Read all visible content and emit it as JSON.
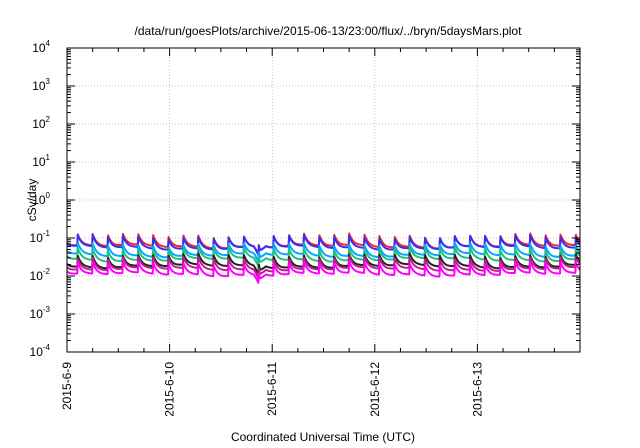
{
  "chart_data": {
    "type": "line",
    "title": "/data/run/goesPlots/archive/2015-06-13/23:00/flux/../bryn/5daysMars.plot",
    "xlabel": "Coordinated Universal Time (UTC)",
    "ylabel": "cSv/day",
    "yscale": "log",
    "ylim": [
      0.0001,
      10000
    ],
    "xlim": [
      "2015-06-09",
      "2015-06-14"
    ],
    "grid": true,
    "x_ticks": [
      "2015-6-9",
      "2015-6-10",
      "2015-6-11",
      "2015-6-12",
      "2015-6-13"
    ],
    "y_ticks": [
      {
        "base": "10",
        "exp": "-4"
      },
      {
        "base": "10",
        "exp": "-3"
      },
      {
        "base": "10",
        "exp": "-2"
      },
      {
        "base": "10",
        "exp": "-1"
      },
      {
        "base": "10",
        "exp": "0"
      },
      {
        "base": "10",
        "exp": "1"
      },
      {
        "base": "10",
        "exp": "2"
      },
      {
        "base": "10",
        "exp": "3"
      },
      {
        "base": "10",
        "exp": "4"
      }
    ],
    "pattern": {
      "cycles_per_day": 6.8,
      "start_phase": 0.3,
      "peak_factor": 2.0,
      "dip": {
        "day": 1.88,
        "factor": 0.5
      }
    },
    "series": [
      {
        "color": "#ff2020",
        "level": 0.06
      },
      {
        "color": "#3030ff",
        "level": 0.055
      },
      {
        "color": "#00aaff",
        "level": 0.035
      },
      {
        "color": "#20c080",
        "level": 0.027
      },
      {
        "color": "#222222",
        "level": 0.018
      },
      {
        "color": "#c0208a",
        "level": 0.015
      },
      {
        "color": "#ff00ff",
        "level": 0.011
      }
    ]
  }
}
